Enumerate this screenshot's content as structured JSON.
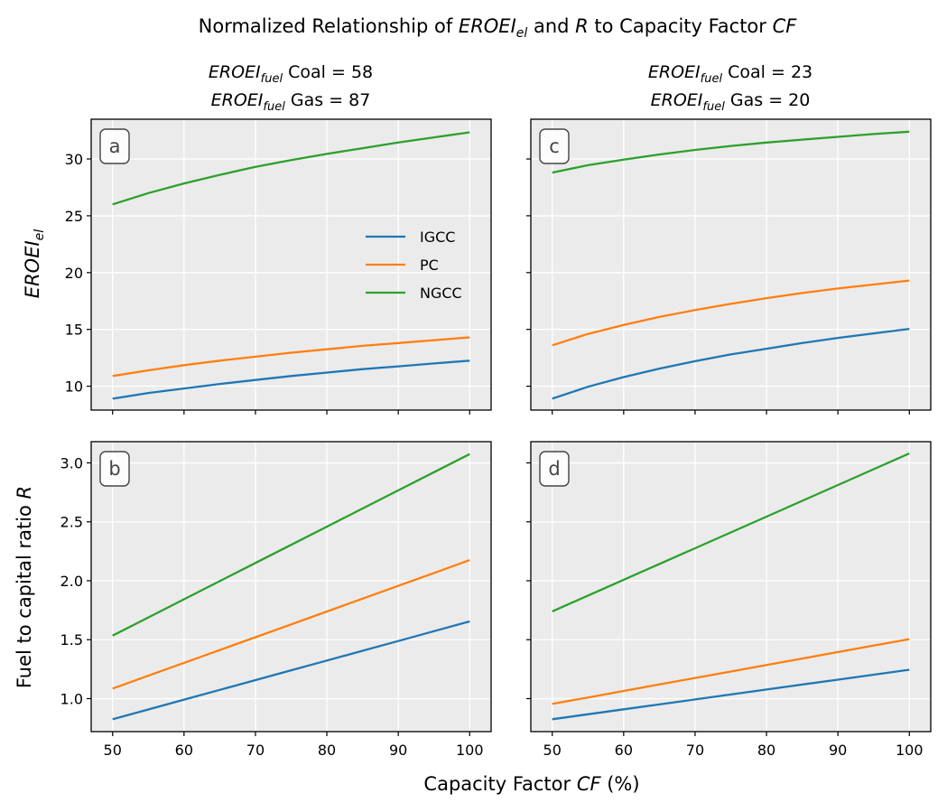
{
  "figure": {
    "suptitle": {
      "pre": "Normalized Relationship of ",
      "v1": "EROEI",
      "v1sub": "el",
      "mid": " and ",
      "v2": "R",
      "post": " to Capacity Factor ",
      "v3": "CF"
    },
    "xlabel": {
      "pre": "Capacity Factor ",
      "var": "CF",
      "post": "  (%)"
    },
    "ylabel_top": {
      "var": "EROEI",
      "sub": "el"
    },
    "ylabel_bottom": {
      "pre": "Fuel to capital ratio ",
      "var": "R"
    },
    "col_titles": [
      {
        "line1": {
          "var": "EROEI",
          "sub": "fuel",
          "text": " Coal = 58"
        },
        "line2": {
          "var": "EROEI",
          "sub": "fuel",
          "text": " Gas = 87"
        }
      },
      {
        "line1": {
          "var": "EROEI",
          "sub": "fuel",
          "text": " Coal = 23"
        },
        "line2": {
          "var": "EROEI",
          "sub": "fuel",
          "text": " Gas = 20"
        }
      }
    ],
    "legend": [
      "IGCC",
      "PC",
      "NGCC"
    ],
    "colors": {
      "IGCC": "#1f77b4",
      "PC": "#ff7f0e",
      "NGCC": "#2ca02c",
      "background": "#ebebeb",
      "grid": "#ffffff"
    }
  },
  "chart_data": [
    {
      "type": "line",
      "panel": "a",
      "x": [
        50,
        55,
        60,
        65,
        70,
        75,
        80,
        85,
        90,
        95,
        100
      ],
      "xlim": [
        47,
        103
      ],
      "ylim": [
        7.9,
        33.5
      ],
      "xticks": [
        50,
        60,
        70,
        80,
        90,
        100
      ],
      "yticks": [
        10,
        15,
        20,
        25,
        30
      ],
      "show_xtick_labels": false,
      "show_ytick_labels": true,
      "series": [
        {
          "name": "IGCC",
          "values": [
            8.9,
            9.4,
            9.8,
            10.2,
            10.55,
            10.9,
            11.2,
            11.5,
            11.75,
            12.0,
            12.25
          ]
        },
        {
          "name": "PC",
          "values": [
            10.9,
            11.4,
            11.85,
            12.25,
            12.6,
            12.95,
            13.25,
            13.55,
            13.8,
            14.05,
            14.3
          ]
        },
        {
          "name": "NGCC",
          "values": [
            26.0,
            27.0,
            27.85,
            28.6,
            29.3,
            29.9,
            30.45,
            30.95,
            31.45,
            31.9,
            32.35
          ]
        }
      ]
    },
    {
      "type": "line",
      "panel": "b",
      "x": [
        50,
        55,
        60,
        65,
        70,
        75,
        80,
        85,
        90,
        95,
        100
      ],
      "xlim": [
        47,
        103
      ],
      "ylim": [
        0.72,
        3.18
      ],
      "xticks": [
        50,
        60,
        70,
        80,
        90,
        100
      ],
      "yticks": [
        1.0,
        1.5,
        2.0,
        2.5,
        3.0
      ],
      "show_xtick_labels": true,
      "show_ytick_labels": true,
      "series": [
        {
          "name": "IGCC",
          "values": [
            0.825,
            0.908,
            0.991,
            1.074,
            1.157,
            1.24,
            1.323,
            1.406,
            1.489,
            1.572,
            1.655
          ]
        },
        {
          "name": "PC",
          "values": [
            1.085,
            1.194,
            1.303,
            1.412,
            1.521,
            1.63,
            1.739,
            1.848,
            1.957,
            2.066,
            2.175
          ]
        },
        {
          "name": "NGCC",
          "values": [
            1.535,
            1.689,
            1.843,
            1.997,
            2.151,
            2.305,
            2.459,
            2.613,
            2.767,
            2.921,
            3.075
          ]
        }
      ]
    },
    {
      "type": "line",
      "panel": "c",
      "x": [
        50,
        55,
        60,
        65,
        70,
        75,
        80,
        85,
        90,
        95,
        100
      ],
      "xlim": [
        47,
        103
      ],
      "ylim": [
        7.9,
        33.5
      ],
      "xticks": [
        50,
        60,
        70,
        80,
        90,
        100
      ],
      "yticks": [
        10,
        15,
        20,
        25,
        30
      ],
      "show_xtick_labels": false,
      "show_ytick_labels": false,
      "series": [
        {
          "name": "IGCC",
          "values": [
            8.9,
            9.95,
            10.8,
            11.55,
            12.2,
            12.8,
            13.3,
            13.8,
            14.25,
            14.65,
            15.05
          ]
        },
        {
          "name": "PC",
          "values": [
            13.6,
            14.6,
            15.4,
            16.1,
            16.7,
            17.25,
            17.75,
            18.2,
            18.6,
            18.95,
            19.3
          ]
        },
        {
          "name": "NGCC",
          "values": [
            28.8,
            29.45,
            29.95,
            30.4,
            30.8,
            31.15,
            31.45,
            31.7,
            31.95,
            32.2,
            32.4
          ]
        }
      ]
    },
    {
      "type": "line",
      "panel": "d",
      "x": [
        50,
        55,
        60,
        65,
        70,
        75,
        80,
        85,
        90,
        95,
        100
      ],
      "xlim": [
        47,
        103
      ],
      "ylim": [
        0.72,
        3.18
      ],
      "xticks": [
        50,
        60,
        70,
        80,
        90,
        100
      ],
      "yticks": [
        1.0,
        1.5,
        2.0,
        2.5,
        3.0
      ],
      "show_xtick_labels": true,
      "show_ytick_labels": false,
      "series": [
        {
          "name": "IGCC",
          "values": [
            0.825,
            0.867,
            0.909,
            0.951,
            0.993,
            1.035,
            1.077,
            1.119,
            1.161,
            1.203,
            1.245
          ]
        },
        {
          "name": "PC",
          "values": [
            0.955,
            1.01,
            1.065,
            1.12,
            1.175,
            1.23,
            1.285,
            1.34,
            1.395,
            1.45,
            1.505
          ]
        },
        {
          "name": "NGCC",
          "values": [
            1.74,
            1.874,
            2.008,
            2.142,
            2.276,
            2.41,
            2.544,
            2.678,
            2.812,
            2.946,
            3.08
          ]
        }
      ]
    }
  ]
}
